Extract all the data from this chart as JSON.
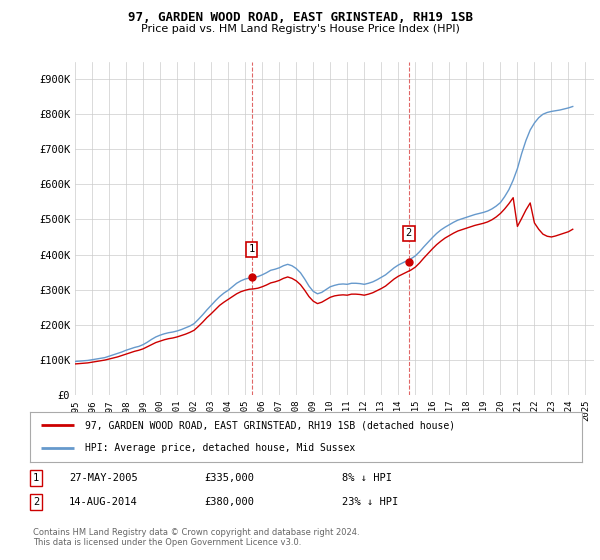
{
  "title": "97, GARDEN WOOD ROAD, EAST GRINSTEAD, RH19 1SB",
  "subtitle": "Price paid vs. HM Land Registry's House Price Index (HPI)",
  "ylabel_ticks": [
    "£0",
    "£100K",
    "£200K",
    "£300K",
    "£400K",
    "£500K",
    "£600K",
    "£700K",
    "£800K",
    "£900K"
  ],
  "ytick_values": [
    0,
    100000,
    200000,
    300000,
    400000,
    500000,
    600000,
    700000,
    800000,
    900000
  ],
  "ylim": [
    0,
    950000
  ],
  "xlim_start": 1995.0,
  "xlim_end": 2025.5,
  "hpi_years": [
    1995.0,
    1995.25,
    1995.5,
    1995.75,
    1996.0,
    1996.25,
    1996.5,
    1996.75,
    1997.0,
    1997.25,
    1997.5,
    1997.75,
    1998.0,
    1998.25,
    1998.5,
    1998.75,
    1999.0,
    1999.25,
    1999.5,
    1999.75,
    2000.0,
    2000.25,
    2000.5,
    2000.75,
    2001.0,
    2001.25,
    2001.5,
    2001.75,
    2002.0,
    2002.25,
    2002.5,
    2002.75,
    2003.0,
    2003.25,
    2003.5,
    2003.75,
    2004.0,
    2004.25,
    2004.5,
    2004.75,
    2005.0,
    2005.25,
    2005.5,
    2005.75,
    2006.0,
    2006.25,
    2006.5,
    2006.75,
    2007.0,
    2007.25,
    2007.5,
    2007.75,
    2008.0,
    2008.25,
    2008.5,
    2008.75,
    2009.0,
    2009.25,
    2009.5,
    2009.75,
    2010.0,
    2010.25,
    2010.5,
    2010.75,
    2011.0,
    2011.25,
    2011.5,
    2011.75,
    2012.0,
    2012.25,
    2012.5,
    2012.75,
    2013.0,
    2013.25,
    2013.5,
    2013.75,
    2014.0,
    2014.25,
    2014.5,
    2014.75,
    2015.0,
    2015.25,
    2015.5,
    2015.75,
    2016.0,
    2016.25,
    2016.5,
    2016.75,
    2017.0,
    2017.25,
    2017.5,
    2017.75,
    2018.0,
    2018.25,
    2018.5,
    2018.75,
    2019.0,
    2019.25,
    2019.5,
    2019.75,
    2020.0,
    2020.25,
    2020.5,
    2020.75,
    2021.0,
    2021.25,
    2021.5,
    2021.75,
    2022.0,
    2022.25,
    2022.5,
    2022.75,
    2023.0,
    2023.25,
    2023.5,
    2023.75,
    2024.0,
    2024.25
  ],
  "hpi_values": [
    95000,
    96000,
    97000,
    98000,
    100000,
    102000,
    104000,
    106000,
    110000,
    114000,
    118000,
    122000,
    127000,
    131000,
    135000,
    138000,
    143000,
    150000,
    158000,
    165000,
    170000,
    174000,
    177000,
    179000,
    182000,
    186000,
    191000,
    196000,
    203000,
    215000,
    228000,
    242000,
    255000,
    268000,
    280000,
    290000,
    298000,
    308000,
    318000,
    325000,
    330000,
    333000,
    335000,
    337000,
    342000,
    348000,
    355000,
    358000,
    362000,
    368000,
    372000,
    368000,
    360000,
    348000,
    330000,
    310000,
    295000,
    288000,
    292000,
    300000,
    308000,
    312000,
    315000,
    316000,
    315000,
    318000,
    318000,
    317000,
    315000,
    318000,
    322000,
    328000,
    335000,
    342000,
    352000,
    362000,
    370000,
    376000,
    382000,
    388000,
    396000,
    408000,
    422000,
    435000,
    448000,
    460000,
    470000,
    478000,
    485000,
    492000,
    498000,
    502000,
    506000,
    510000,
    514000,
    517000,
    520000,
    524000,
    530000,
    538000,
    548000,
    565000,
    585000,
    612000,
    645000,
    688000,
    725000,
    755000,
    775000,
    790000,
    800000,
    805000,
    808000,
    810000,
    812000,
    815000,
    818000,
    822000
  ],
  "property_years": [
    1995.0,
    1995.25,
    1995.5,
    1995.75,
    1996.0,
    1996.25,
    1996.5,
    1996.75,
    1997.0,
    1997.25,
    1997.5,
    1997.75,
    1998.0,
    1998.25,
    1998.5,
    1998.75,
    1999.0,
    1999.25,
    1999.5,
    1999.75,
    2000.0,
    2000.25,
    2000.5,
    2000.75,
    2001.0,
    2001.25,
    2001.5,
    2001.75,
    2002.0,
    2002.25,
    2002.5,
    2002.75,
    2003.0,
    2003.25,
    2003.5,
    2003.75,
    2004.0,
    2004.25,
    2004.5,
    2004.75,
    2005.0,
    2005.25,
    2005.5,
    2005.75,
    2006.0,
    2006.25,
    2006.5,
    2006.75,
    2007.0,
    2007.25,
    2007.5,
    2007.75,
    2008.0,
    2008.25,
    2008.5,
    2008.75,
    2009.0,
    2009.25,
    2009.5,
    2009.75,
    2010.0,
    2010.25,
    2010.5,
    2010.75,
    2011.0,
    2011.25,
    2011.5,
    2011.75,
    2012.0,
    2012.25,
    2012.5,
    2012.75,
    2013.0,
    2013.25,
    2013.5,
    2013.75,
    2014.0,
    2014.25,
    2014.5,
    2014.75,
    2015.0,
    2015.25,
    2015.5,
    2015.75,
    2016.0,
    2016.25,
    2016.5,
    2016.75,
    2017.0,
    2017.25,
    2017.5,
    2017.75,
    2018.0,
    2018.25,
    2018.5,
    2018.75,
    2019.0,
    2019.25,
    2019.5,
    2019.75,
    2020.0,
    2020.25,
    2020.5,
    2020.75,
    2021.0,
    2021.25,
    2021.5,
    2021.75,
    2022.0,
    2022.25,
    2022.5,
    2022.75,
    2023.0,
    2023.25,
    2023.5,
    2023.75,
    2024.0,
    2024.25
  ],
  "property_values": [
    88000,
    89000,
    90000,
    91000,
    93000,
    95000,
    97000,
    99000,
    102000,
    105000,
    108000,
    112000,
    116000,
    120000,
    124000,
    127000,
    131000,
    137000,
    143000,
    149000,
    153000,
    157000,
    160000,
    162000,
    165000,
    169000,
    173000,
    178000,
    184000,
    195000,
    207000,
    220000,
    231000,
    243000,
    255000,
    264000,
    272000,
    280000,
    288000,
    294000,
    298000,
    301000,
    302000,
    304000,
    308000,
    313000,
    319000,
    322000,
    326000,
    332000,
    336000,
    332000,
    325000,
    314000,
    298000,
    280000,
    267000,
    260000,
    264000,
    271000,
    278000,
    282000,
    284000,
    285000,
    284000,
    287000,
    287000,
    286000,
    284000,
    287000,
    291000,
    297000,
    303000,
    310000,
    320000,
    330000,
    338000,
    344000,
    350000,
    356000,
    364000,
    376000,
    390000,
    403000,
    416000,
    428000,
    438000,
    447000,
    454000,
    461000,
    467000,
    471000,
    475000,
    479000,
    483000,
    486000,
    489000,
    493000,
    499000,
    507000,
    517000,
    530000,
    545000,
    562000,
    480000,
    503000,
    527000,
    547000,
    490000,
    472000,
    458000,
    452000,
    450000,
    453000,
    457000,
    461000,
    465000,
    472000
  ],
  "purchase_points": [
    {
      "year": 2005.38,
      "value": 335000,
      "label": "1",
      "color": "#cc0000"
    },
    {
      "year": 2014.62,
      "value": 380000,
      "label": "2",
      "color": "#cc0000"
    }
  ],
  "vline_year1": 2005.38,
  "vline_year2": 2014.62,
  "hpi_color": "#6699cc",
  "property_color": "#cc0000",
  "background_color": "#ffffff",
  "grid_color": "#cccccc",
  "legend_label_property": "97, GARDEN WOOD ROAD, EAST GRINSTEAD, RH19 1SB (detached house)",
  "legend_label_hpi": "HPI: Average price, detached house, Mid Sussex",
  "annotation1_num": "1",
  "annotation1_date": "27-MAY-2005",
  "annotation1_price": "£335,000",
  "annotation1_hpi": "8% ↓ HPI",
  "annotation2_num": "2",
  "annotation2_date": "14-AUG-2014",
  "annotation2_price": "£380,000",
  "annotation2_hpi": "23% ↓ HPI",
  "footer": "Contains HM Land Registry data © Crown copyright and database right 2024.\nThis data is licensed under the Open Government Licence v3.0.",
  "xtick_years": [
    1995,
    1996,
    1997,
    1998,
    1999,
    2000,
    2001,
    2002,
    2003,
    2004,
    2005,
    2006,
    2007,
    2008,
    2009,
    2010,
    2011,
    2012,
    2013,
    2014,
    2015,
    2016,
    2017,
    2018,
    2019,
    2020,
    2021,
    2022,
    2023,
    2024,
    2025
  ]
}
